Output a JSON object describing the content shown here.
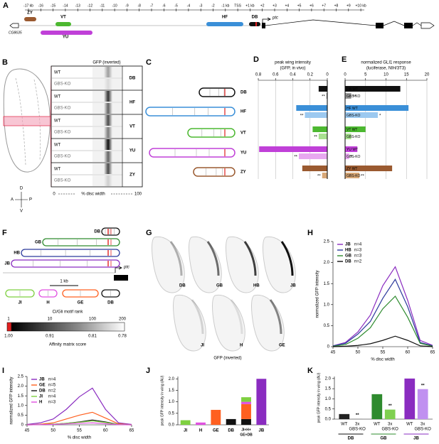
{
  "panel_labels": [
    "A",
    "B",
    "C",
    "D",
    "E",
    "F",
    "G",
    "H",
    "I",
    "J",
    "K"
  ],
  "panel_a": {
    "ruler": [
      "-17 kb",
      "-16",
      "-15",
      "-14",
      "-13",
      "-12",
      "-11",
      "-10",
      "-9",
      "-8",
      "-7",
      "-6",
      "-5",
      "-4",
      "-3",
      "-2",
      "-1 kb",
      "TSS",
      "+1 kb",
      "+2",
      "+3",
      "+4",
      "+5",
      "+6",
      "+7",
      "+8",
      "+9",
      "+10 kb"
    ],
    "enhancers": [
      {
        "label": "ZY",
        "color": "#9a5a30"
      },
      {
        "label": "YU",
        "color": "#c040d8"
      },
      {
        "label": "VT",
        "color": "#4cb830"
      },
      {
        "label": "HF",
        "color": "#3a8fd8"
      },
      {
        "label": "DB",
        "color": "#111111"
      }
    ],
    "gene": "ptc",
    "neighbor": "CG8635"
  },
  "panel_b": {
    "header": "GFP (inverted)",
    "rows": [
      {
        "name": "DB",
        "color": "#111111",
        "wt": "WT",
        "ko": "GBS-KO"
      },
      {
        "name": "HF",
        "color": "#3a8fd8",
        "wt": "WT",
        "ko": "GBS-KO"
      },
      {
        "name": "VT",
        "color": "#4cb830",
        "wt": "WT",
        "ko": "GBS-KO"
      },
      {
        "name": "YU",
        "color": "#c040d8",
        "wt": "WT",
        "ko": "GBS-KO"
      },
      {
        "name": "ZY",
        "color": "#9a5a30",
        "wt": "WT",
        "ko": "GBS-KO"
      }
    ],
    "scale": [
      "0",
      "% disc width",
      "100"
    ],
    "compass": [
      "D",
      "A",
      "P",
      "V"
    ]
  },
  "panel_c": {
    "constructs": [
      {
        "name": "DB",
        "color": "#111111"
      },
      {
        "name": "HF",
        "color": "#3a8fd8"
      },
      {
        "name": "VT",
        "color": "#4cb830"
      },
      {
        "name": "YU",
        "color": "#c040d8"
      },
      {
        "name": "ZY",
        "color": "#9a5a30"
      }
    ]
  },
  "panel_f": {
    "top": [
      {
        "name": "DB",
        "color": "#111111"
      },
      {
        "name": "GB",
        "color": "#2e8b2e"
      },
      {
        "name": "HB",
        "color": "#2c3a9c"
      },
      {
        "name": "JB",
        "color": "#8a2cc0"
      }
    ],
    "gene": "ptc",
    "exon": "exon 1",
    "scale": "1 kb",
    "bottom": [
      {
        "name": "JI",
        "color": "#7ed040"
      },
      {
        "name": "H",
        "color": "#e050e0"
      },
      {
        "name": "GE",
        "color": "#ff6020"
      },
      {
        "name": "DB",
        "color": "#111111"
      }
    ],
    "colorbar": {
      "title": "Ci/Gli motif rank",
      "top_ticks": [
        "1",
        "10",
        "100",
        "200"
      ],
      "title2": "Affinity matrix score",
      "bottom_ticks": [
        "1.00",
        "0.91",
        "0.81",
        "0.78"
      ]
    }
  },
  "panel_g": {
    "top": [
      {
        "name": "DB",
        "color": "#111111"
      },
      {
        "name": "GB",
        "color": "#2e8b2e"
      },
      {
        "name": "HB",
        "color": "#2c3a9c"
      },
      {
        "name": "JB",
        "color": "#8a2cc0"
      }
    ],
    "bottom": [
      {
        "name": "JI",
        "color": "#7ed040"
      },
      {
        "name": "H",
        "color": "#e050e0"
      },
      {
        "name": "GE",
        "color": "#ff6020"
      }
    ],
    "caption": "GFP (inverted)"
  },
  "chart_data": [
    {
      "type": "hbar",
      "title": "peak wing intensity",
      "subtitle": "(GFP, in vivo)",
      "categories": [
        null,
        null,
        null,
        null,
        null,
        null,
        null,
        null,
        null,
        null
      ],
      "values": [
        0.1,
        0.01,
        0.36,
        0.26,
        0.17,
        0.1,
        0.79,
        0.33,
        0.29,
        0.06
      ],
      "colors": [
        "#111111",
        "#999999",
        "#3a8fd8",
        "#9cc9f0",
        "#4cb830",
        "#a8e090",
        "#c040d8",
        "#e8a8f0",
        "#9a5a30",
        "#d8a878"
      ],
      "significance": [
        null,
        "**",
        null,
        "**",
        null,
        "**",
        null,
        "**",
        null,
        "**"
      ],
      "xlim": [
        0.8,
        0
      ],
      "xticks": [
        0.8,
        0.6,
        0.4,
        0.2,
        0
      ],
      "grid": true
    },
    {
      "type": "hbar",
      "title": "normalized GLI1 response",
      "subtitle": "(luciferase, NIH/3T3)",
      "categories": [
        "DB WT",
        "GBS-KO",
        "HF WT",
        "GBS-KO",
        "VT WT",
        "GBS-KO",
        "YU WT",
        "GBS-KO",
        "ZY WT",
        "GBS-KO"
      ],
      "values": [
        13.5,
        1.5,
        15.5,
        8,
        5,
        1.5,
        3,
        1,
        11.5,
        3.5
      ],
      "colors": [
        "#111111",
        "#999999",
        "#3a8fd8",
        "#9cc9f0",
        "#4cb830",
        "#a8e090",
        "#c040d8",
        "#e8a8f0",
        "#9a5a30",
        "#d8a878"
      ],
      "significance": [
        null,
        "**",
        null,
        "*",
        null,
        null,
        null,
        "*",
        null,
        "**"
      ],
      "xlim": [
        0,
        20
      ],
      "xticks": [
        0,
        5,
        10,
        15,
        20
      ],
      "grid": true
    },
    {
      "type": "line",
      "xlabel": "% disc width",
      "ylabel": "normalized GFP intensity",
      "x": [
        45,
        47.5,
        50,
        52.5,
        55,
        57.5,
        60,
        62.5,
        65
      ],
      "series": [
        {
          "name": "JB",
          "n": "n=4",
          "color": "#8a2cc0",
          "values": [
            0.02,
            0.1,
            0.35,
            0.75,
            1.45,
            1.9,
            1.1,
            0.15,
            0.03
          ]
        },
        {
          "name": "HB",
          "n": "n=3",
          "color": "#2c3a9c",
          "values": [
            0.02,
            0.08,
            0.3,
            0.6,
            1.15,
            1.6,
            0.95,
            0.1,
            0.02
          ]
        },
        {
          "name": "GB",
          "n": "n=3",
          "color": "#2e8b2e",
          "values": [
            0.01,
            0.05,
            0.2,
            0.45,
            0.9,
            1.2,
            0.7,
            0.08,
            0.01
          ]
        },
        {
          "name": "DB",
          "n": "n=2",
          "color": "#111111",
          "values": [
            0,
            0.01,
            0.03,
            0.07,
            0.15,
            0.25,
            0.15,
            0.02,
            0
          ]
        }
      ],
      "xlim": [
        45,
        65
      ],
      "xticks": [
        45,
        50,
        55,
        60,
        65
      ],
      "ylim": [
        0,
        2.5
      ],
      "yticks": [
        0,
        0.5,
        {
          "value": 1,
          "label": "1.0"
        },
        1.5,
        {
          "value": 2,
          "label": "2.0"
        },
        2.5
      ]
    },
    {
      "type": "line",
      "xlabel": "% disc width",
      "ylabel": "normalized GFP intensity",
      "x": [
        45,
        47.5,
        50,
        52.5,
        55,
        57.5,
        60,
        62.5,
        65
      ],
      "series": [
        {
          "name": "JB",
          "n": "n=4",
          "color": "#8a2cc0",
          "values": [
            0.02,
            0.1,
            0.3,
            0.8,
            1.45,
            1.9,
            0.8,
            0.1,
            0.02
          ]
        },
        {
          "name": "GE",
          "n": "n=5",
          "color": "#ff6020",
          "values": [
            0,
            0.03,
            0.1,
            0.3,
            0.5,
            0.65,
            0.35,
            0.05,
            0
          ]
        },
        {
          "name": "DB",
          "n": "n=2",
          "color": "#111111",
          "values": [
            0,
            0.01,
            0.03,
            0.08,
            0.15,
            0.25,
            0.15,
            0.02,
            0
          ]
        },
        {
          "name": "JI",
          "n": "n=4",
          "color": "#7ed040",
          "values": [
            0,
            0.01,
            0.03,
            0.08,
            0.13,
            0.2,
            0.12,
            0.02,
            0
          ]
        },
        {
          "name": "H",
          "n": "n=3",
          "color": "#e050e0",
          "values": [
            0,
            0.01,
            0.02,
            0.05,
            0.08,
            0.1,
            0.06,
            0.01,
            0
          ]
        }
      ],
      "xlim": [
        45,
        65
      ],
      "xticks": [
        45,
        50,
        55,
        60,
        65
      ],
      "ylim": [
        0,
        2.5
      ],
      "yticks": [
        0,
        0.5,
        {
          "value": 1,
          "label": "1.0"
        },
        1.5,
        {
          "value": 2,
          "label": "2.0"
        },
        2.5
      ]
    },
    {
      "type": "bar",
      "ylabel": "peak GFP intensity in wing (AU)",
      "categories": [
        "JI",
        "H",
        "GE",
        "DB",
        null,
        "JB"
      ],
      "category_colors": [
        "#7ed040",
        "#e050e0",
        "#ff6020",
        "#111111",
        null,
        "#8a2cc0"
      ],
      "stack_label_lines": [
        "JI+H+",
        "GE+DB"
      ],
      "series": [
        {
          "color": "#111111",
          "values": [
            null,
            null,
            null,
            0.25,
            0.25,
            null
          ]
        },
        {
          "color": "#ff6020",
          "values": [
            null,
            null,
            0.65,
            null,
            0.65,
            null
          ]
        },
        {
          "color": "#e050e0",
          "values": [
            null,
            0.1,
            null,
            null,
            0.1,
            null
          ]
        },
        {
          "color": "#7ed040",
          "values": [
            0.2,
            null,
            null,
            null,
            0.2,
            null
          ]
        },
        {
          "color": "#8a2cc0",
          "values": [
            null,
            null,
            null,
            null,
            null,
            2.0
          ]
        }
      ],
      "ylim": [
        0,
        2.1
      ],
      "yticks": [
        {
          "value": 0,
          "label": "0.0"
        },
        0.5,
        {
          "value": 1,
          "label": "1.0"
        },
        1.5,
        {
          "value": 2,
          "label": "2.0"
        }
      ]
    },
    {
      "type": "bar",
      "ylabel": "peak GFP intensity in wing (AU)",
      "categories": [
        [
          "WT"
        ],
        [
          "3x",
          "GBS-KO"
        ],
        [
          "WT"
        ],
        [
          "3x",
          "GBS-KO"
        ],
        [
          "WT"
        ],
        [
          "3x",
          "GBS-KO"
        ]
      ],
      "values": [
        0.25,
        0.02,
        1.23,
        0.47,
        2.0,
        1.48
      ],
      "colors": [
        "#222222",
        "#888888",
        "#2e8b2e",
        "#7fd050",
        "#8a2cc0",
        "#c090f0"
      ],
      "significance": [
        null,
        "**",
        null,
        "**",
        null,
        "**"
      ],
      "groups": [
        {
          "name": "DB",
          "color": "#111111"
        },
        {
          "name": "GB",
          "color": "#2e8b2e"
        },
        {
          "name": "JB",
          "color": "#8a2cc0"
        }
      ],
      "ylim": [
        0,
        2.1
      ],
      "yticks": [
        {
          "value": 0,
          "label": "0.0"
        },
        0.5,
        {
          "value": 1,
          "label": "1.0"
        },
        1.5,
        {
          "value": 2,
          "label": "2.0"
        }
      ]
    }
  ]
}
